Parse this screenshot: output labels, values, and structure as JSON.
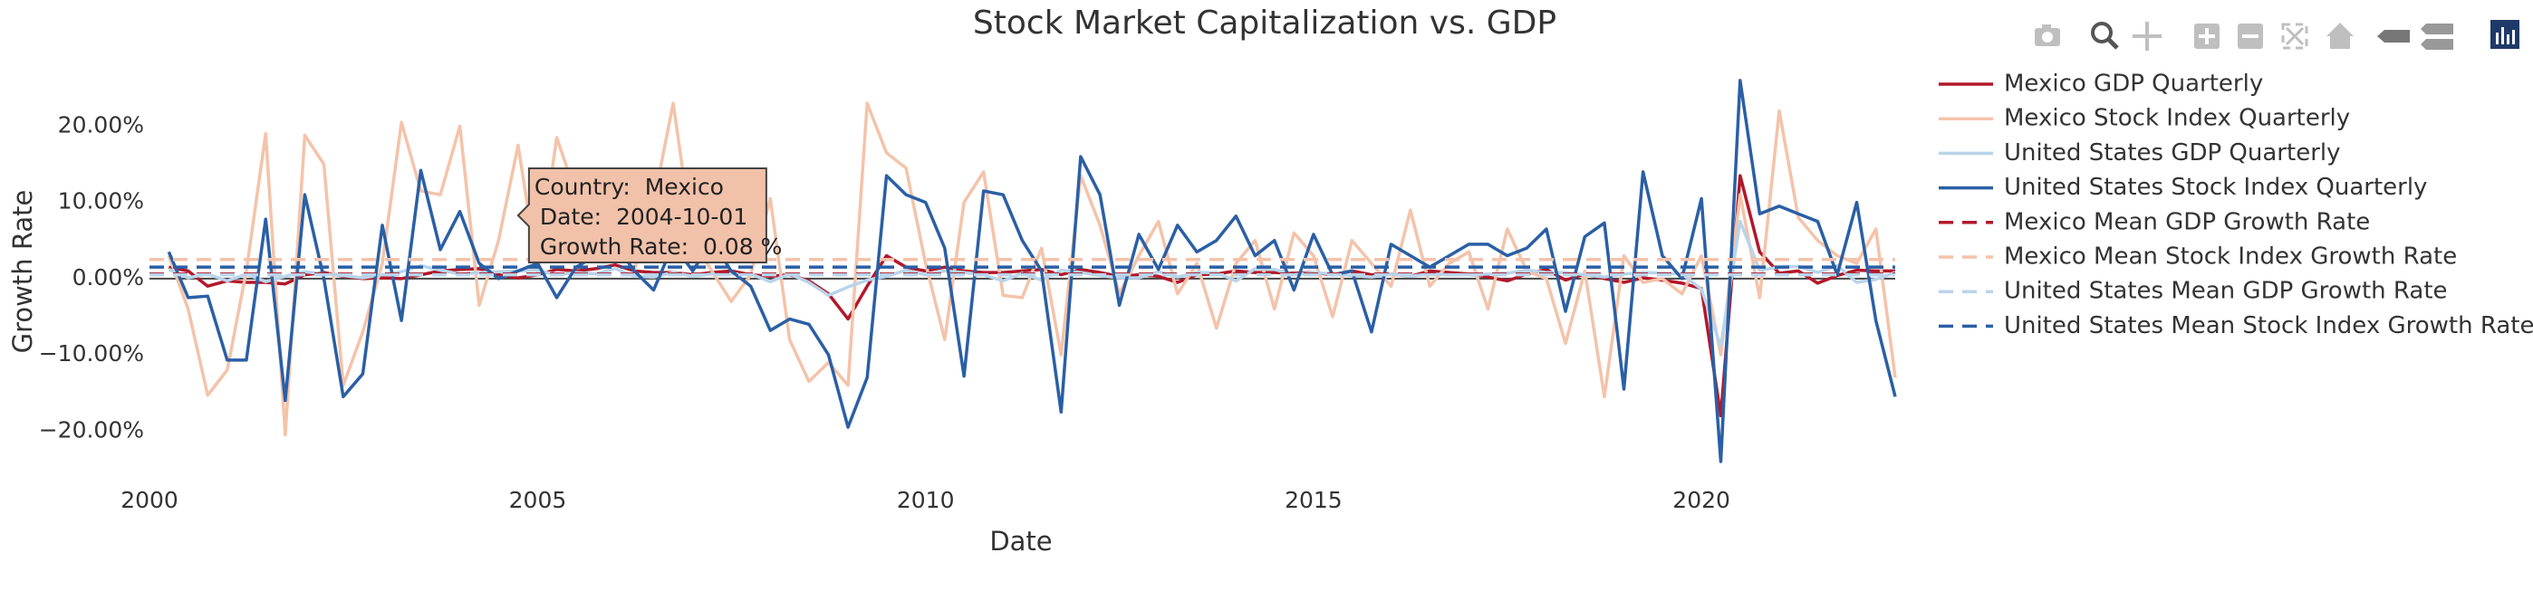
{
  "chart_data": {
    "type": "line",
    "title": "Stock Market Capitalization vs. GDP",
    "x_label": "Date",
    "y_label": "Growth Rate",
    "x": [
      "2000-04-01",
      "2000-07-01",
      "2000-10-01",
      "2001-01-01",
      "2001-04-01",
      "2001-07-01",
      "2001-10-01",
      "2002-01-01",
      "2002-04-01",
      "2002-07-01",
      "2002-10-01",
      "2003-01-01",
      "2003-04-01",
      "2003-07-01",
      "2003-10-01",
      "2004-01-01",
      "2004-04-01",
      "2004-07-01",
      "2004-10-01",
      "2005-01-01",
      "2005-04-01",
      "2005-07-01",
      "2005-10-01",
      "2006-01-01",
      "2006-04-01",
      "2006-07-01",
      "2006-10-01",
      "2007-01-01",
      "2007-04-01",
      "2007-07-01",
      "2007-10-01",
      "2008-01-01",
      "2008-04-01",
      "2008-07-01",
      "2008-10-01",
      "2009-01-01",
      "2009-04-01",
      "2009-07-01",
      "2009-10-01",
      "2010-01-01",
      "2010-04-01",
      "2010-07-01",
      "2010-10-01",
      "2011-01-01",
      "2011-04-01",
      "2011-07-01",
      "2011-10-01",
      "2012-01-01",
      "2012-04-01",
      "2012-07-01",
      "2012-10-01",
      "2013-01-01",
      "2013-04-01",
      "2013-07-01",
      "2013-10-01",
      "2014-01-01",
      "2014-04-01",
      "2014-07-01",
      "2014-10-01",
      "2015-01-01",
      "2015-04-01",
      "2015-07-01",
      "2015-10-01",
      "2016-01-01",
      "2016-04-01",
      "2016-07-01",
      "2016-10-01",
      "2017-01-01",
      "2017-04-01",
      "2017-07-01",
      "2017-10-01",
      "2018-01-01",
      "2018-04-01",
      "2018-07-01",
      "2018-10-01",
      "2019-01-01",
      "2019-04-01",
      "2019-07-01",
      "2019-10-01",
      "2020-01-01",
      "2020-04-01",
      "2020-07-01",
      "2020-10-01",
      "2021-01-01",
      "2021-04-01",
      "2021-07-01",
      "2021-10-01",
      "2022-01-01",
      "2022-04-01",
      "2022-07-01"
    ],
    "series": [
      {
        "name": "Mexico GDP Quarterly",
        "color": "#b2182b",
        "values": [
          1.5,
          1,
          -1,
          -0.3,
          -0.5,
          -0.5,
          -0.7,
          0.5,
          0.8,
          0.3,
          0,
          0.1,
          0,
          0.5,
          1,
          1.2,
          1.3,
          0.5,
          0.08,
          0.5,
          1.2,
          1,
          1.3,
          1.8,
          1,
          0.8,
          0.8,
          0.5,
          0.8,
          1,
          0.5,
          0.3,
          0.5,
          -0.3,
          -2,
          -5.3,
          -1,
          3,
          1.5,
          1,
          1.5,
          1,
          0.8,
          0.8,
          1,
          1.2,
          0.5,
          1.2,
          0.8,
          0.3,
          0.5,
          0.3,
          -0.5,
          0.5,
          0.6,
          1,
          0.8,
          0.8,
          0.7,
          0.8,
          0.5,
          1,
          0.5,
          0.6,
          0.3,
          1,
          0.8,
          0.6,
          0.2,
          -0.3,
          0.6,
          1.2,
          -0.2,
          0.6,
          0,
          -0.5,
          0.1,
          -0.2,
          -0.6,
          -1.3,
          -18,
          13.5,
          3.5,
          0.7,
          1,
          -0.6,
          0.4,
          1.1,
          1,
          1
        ]
      },
      {
        "name": "Mexico Stock Index Quarterly",
        "color": "#f4c3aa",
        "values": [
          3,
          -4,
          -15.3,
          -12,
          1,
          19,
          -20.5,
          18.8,
          15,
          -14,
          -7,
          2,
          20.5,
          11.5,
          11,
          20,
          -3.5,
          5,
          17.5,
          1,
          18.5,
          11,
          9,
          5,
          1,
          10,
          23,
          5,
          1,
          -3,
          0.5,
          10.5,
          -8,
          -13.5,
          -11,
          -14,
          23,
          16.5,
          14.5,
          2,
          -8,
          10,
          14,
          -2.2,
          -2.5,
          4,
          -10,
          13.5,
          7,
          -2,
          3,
          7.5,
          -2,
          2,
          -6.5,
          2,
          5,
          -4,
          6,
          3,
          -5,
          5,
          2,
          -1,
          9,
          -1,
          2,
          3.5,
          -4,
          6.5,
          1,
          0,
          -8.5,
          1,
          -15.5,
          3,
          -0.5,
          0,
          -2,
          3,
          -10,
          11,
          -2.5,
          22,
          8,
          5,
          3,
          2,
          6.5,
          -13
        ]
      },
      {
        "name": "United States GDP Quarterly",
        "color": "#b9d4ea",
        "values": [
          1.2,
          0.1,
          0.6,
          -0.3,
          0.6,
          -0.4,
          0.3,
          0.9,
          0.6,
          0.4,
          0.1,
          0.5,
          0.9,
          1.7,
          1.1,
          0.6,
          0.8,
          0.9,
          1,
          1.1,
          0.5,
          0.8,
          0.6,
          1.3,
          0.3,
          0.2,
          0.8,
          0.3,
          0.6,
          0.6,
          0.6,
          -0.4,
          0.6,
          -0.5,
          -2.2,
          -1.1,
          -0.2,
          0.3,
          1.1,
          0.5,
          1,
          0.8,
          0.5,
          -0.3,
          0.7,
          -0.2,
          1.1,
          0.8,
          0.4,
          0.1,
          0.1,
          0.9,
          0.2,
          0.8,
          0.8,
          -0.3,
          1.3,
          1.2,
          0.5,
          0.8,
          0.6,
          0.4,
          0.2,
          0.6,
          0.3,
          0.6,
          0.5,
          0.5,
          0.6,
          0.7,
          1.1,
          0.8,
          0.8,
          0.5,
          0.2,
          0.6,
          0.8,
          0.7,
          0.6,
          -1.4,
          -8.9,
          7.5,
          1.1,
          1.5,
          1.6,
          0.8,
          1.7,
          -0.5,
          -0.1,
          0.8
        ]
      },
      {
        "name": "United States Stock Index Quarterly",
        "color": "#2a5fa5",
        "values": [
          3.5,
          -2.5,
          -2.3,
          -10.7,
          -10.7,
          7.8,
          -16,
          11,
          0,
          -15.5,
          -12.5,
          7,
          -5.5,
          14.2,
          3.8,
          8.8,
          2,
          0,
          1,
          2,
          -2.5,
          1.5,
          3,
          4.5,
          1,
          -1.5,
          4.5,
          1,
          5,
          1,
          -1,
          -6.8,
          -5.3,
          -6,
          -10,
          -19.5,
          -13,
          13.5,
          11,
          10,
          4,
          -12.8,
          11.5,
          11,
          5,
          1,
          -17.5,
          16,
          11,
          -3.5,
          5.8,
          1.2,
          7,
          3.5,
          5,
          8.2,
          3,
          5,
          -1.5,
          5.8,
          0.5,
          1,
          -7,
          4.5,
          3,
          1.5,
          3,
          4.5,
          4.5,
          3,
          4,
          6.5,
          -4.3,
          5.5,
          7.3,
          -14.5,
          14,
          3,
          0,
          10.5,
          -24,
          26,
          8.5,
          9.5,
          8.5,
          7.5,
          0.5,
          10,
          -5.5,
          -15.5
        ]
      }
    ],
    "reference_lines": [
      {
        "name": "Mexico Mean GDP Growth Rate",
        "color": "#b2182b",
        "value": 0.6
      },
      {
        "name": "Mexico Mean Stock Index Growth Rate",
        "color": "#f4c3aa",
        "value": 2.5
      },
      {
        "name": "United States Mean GDP Growth Rate",
        "color": "#b9d4ea",
        "value": 0.5
      },
      {
        "name": "United States Mean Stock Index Growth Rate",
        "color": "#2a5fa5",
        "value": 1.5
      }
    ],
    "xlim": [
      "2000-01-01",
      "2022-07-01"
    ],
    "xticks": [
      {
        "value": "2000-01-01",
        "label": "2000"
      },
      {
        "value": "2005-01-01",
        "label": "2005"
      },
      {
        "value": "2010-01-01",
        "label": "2010"
      },
      {
        "value": "2015-01-01",
        "label": "2015"
      },
      {
        "value": "2020-01-01",
        "label": "2020"
      }
    ],
    "ylim": [
      -26.5,
      28
    ],
    "yticks": [
      {
        "value": -20,
        "label": "−20.00%"
      },
      {
        "value": -10,
        "label": "−10.00%"
      },
      {
        "value": 0,
        "label": "0.00%"
      },
      {
        "value": 10,
        "label": "10.00%"
      },
      {
        "value": 20,
        "label": "20.00%"
      }
    ],
    "grid": false,
    "legend": "right",
    "hover_label": {
      "x": "2004-10-01",
      "value": 0.08,
      "lines": [
        "Country:  Mexico",
        "Date:  2004-10-01",
        "Growth Rate:  0.08 %"
      ]
    }
  }
}
